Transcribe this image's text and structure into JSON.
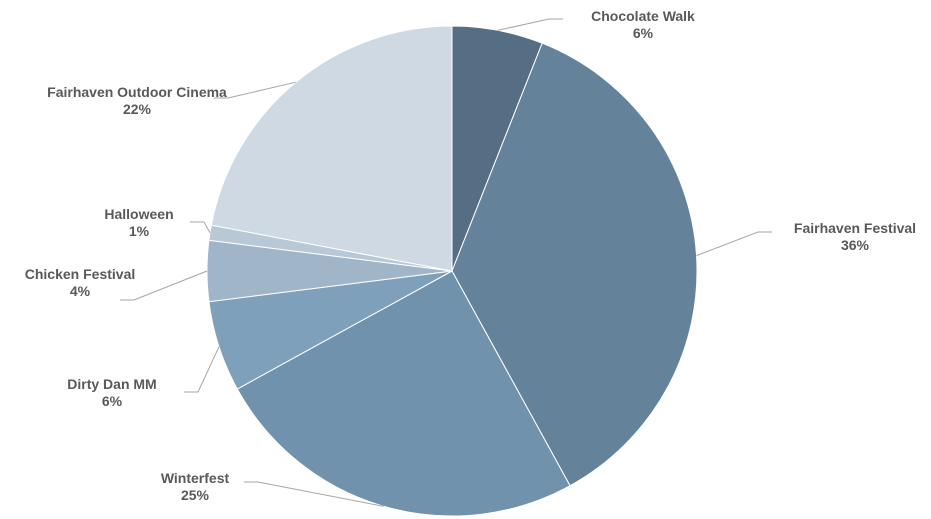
{
  "chart_data": {
    "type": "pie",
    "title": "",
    "slices": [
      {
        "label": "Chocolate Walk",
        "value": 6,
        "display": "6%",
        "color": "#566e83"
      },
      {
        "label": "Fairhaven Festival",
        "value": 36,
        "display": "36%",
        "color": "#64839b"
      },
      {
        "label": "Winterfest",
        "value": 25,
        "display": "25%",
        "color": "#7192ac"
      },
      {
        "label": "Dirty Dan MM",
        "value": 6,
        "display": "6%",
        "color": "#7fa0bb"
      },
      {
        "label": "Chicken Festival",
        "value": 4,
        "display": "4%",
        "color": "#a0b5c8"
      },
      {
        "label": "Halloween",
        "value": 1,
        "display": "1%",
        "color": "#b8c8d7"
      },
      {
        "label": "Fairhaven Outdoor Cinema",
        "value": 22,
        "display": "22%",
        "color": "#ced9e3"
      }
    ],
    "legend": "none",
    "data_labels": "outside with leader lines"
  }
}
